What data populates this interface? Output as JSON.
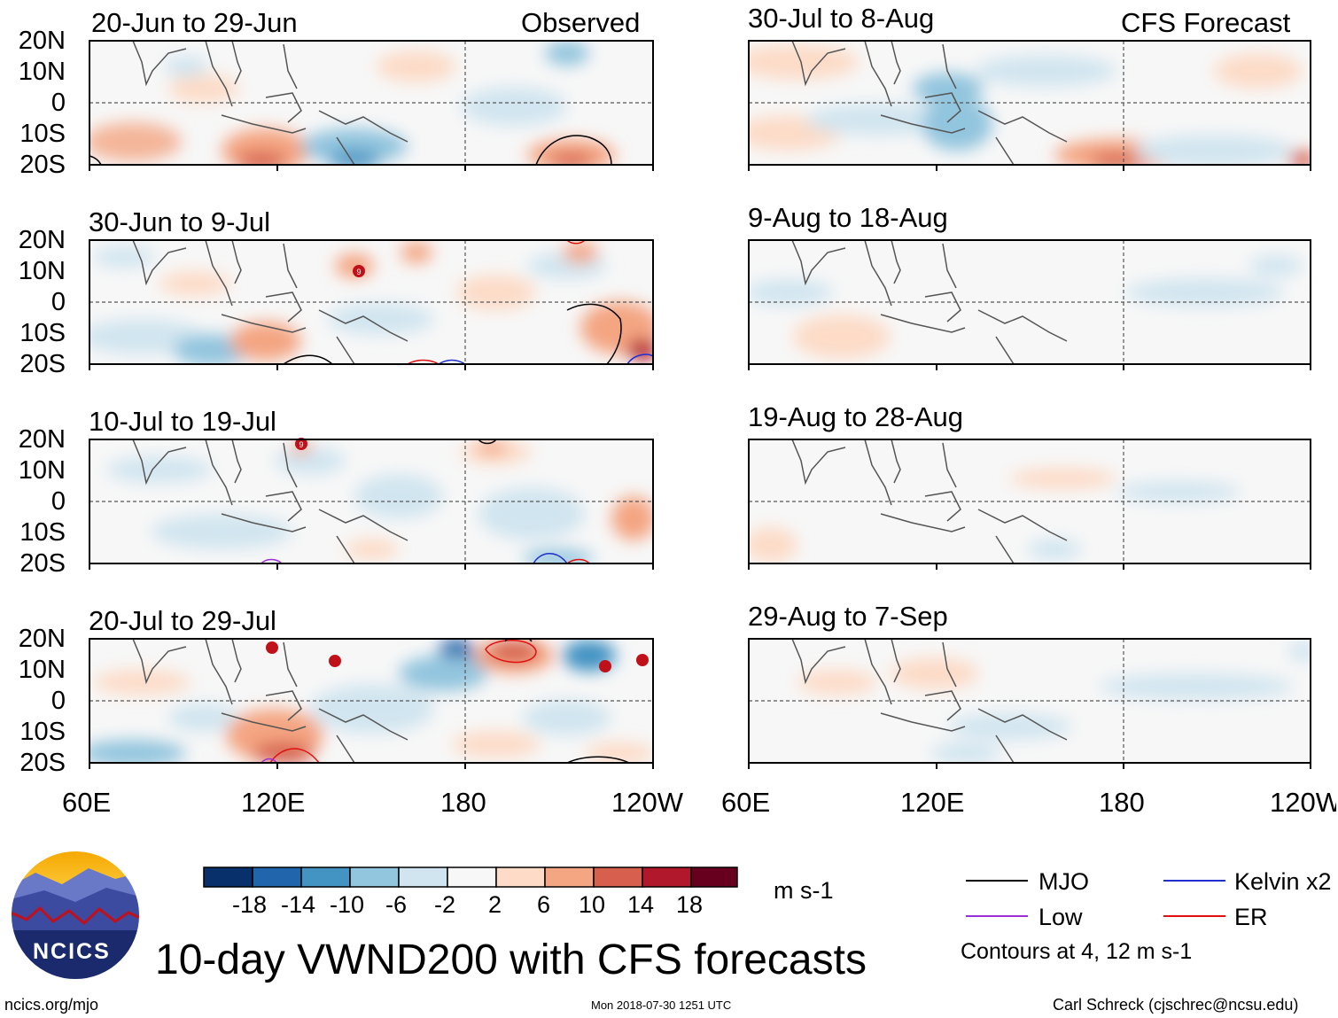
{
  "figure": {
    "main_title": "10-day VWND200 with CFS forecasts",
    "left_header": "Observed",
    "right_header": "CFS Forecast",
    "units": "m s-1",
    "source_url": "ncics.org/mjo",
    "timestamp": "Mon 2018-07-30 1251 UTC",
    "author": "Carl Schreck (cjschrec@ncsu.edu)",
    "logo_text": "NCICS"
  },
  "chart_data": {
    "type": "heatmap",
    "variable": "200-hPa meridional wind anomaly",
    "x_range": [
      60,
      240
    ],
    "y_range": [
      -20,
      20
    ],
    "x_ticks": [
      "60E",
      "120E",
      "180",
      "120W"
    ],
    "y_ticks": [
      "20N",
      "10N",
      "0",
      "10S",
      "20S"
    ],
    "panels_observed": [
      {
        "title": "20-Jun to 29-Jun"
      },
      {
        "title": "30-Jun to 9-Jul"
      },
      {
        "title": "10-Jul to 19-Jul"
      },
      {
        "title": "20-Jul to 29-Jul"
      }
    ],
    "panels_forecast": [
      {
        "title": "30-Jul to 8-Aug"
      },
      {
        "title": "9-Aug to 18-Aug"
      },
      {
        "title": "19-Aug to 28-Aug"
      },
      {
        "title": "29-Aug to 7-Sep"
      }
    ],
    "colorbar": {
      "levels": [
        "-18",
        "-14",
        "-10",
        "-6",
        "-2",
        "2",
        "6",
        "10",
        "14",
        "18"
      ],
      "colors": [
        "#08306b",
        "#2166ac",
        "#4393c3",
        "#92c5de",
        "#d1e5f0",
        "#f7f7f7",
        "#fddbc7",
        "#f4a582",
        "#d6604d",
        "#b2182b",
        "#67001f"
      ]
    },
    "legend": [
      {
        "label": "MJO",
        "color": "#000000"
      },
      {
        "label": "Kelvin x2",
        "color": "#1f2fd0"
      },
      {
        "label": "Low",
        "color": "#9b30d9"
      },
      {
        "label": "ER",
        "color": "#e01010"
      }
    ],
    "contour_note": "Contours at 4, 12 m s-1"
  }
}
